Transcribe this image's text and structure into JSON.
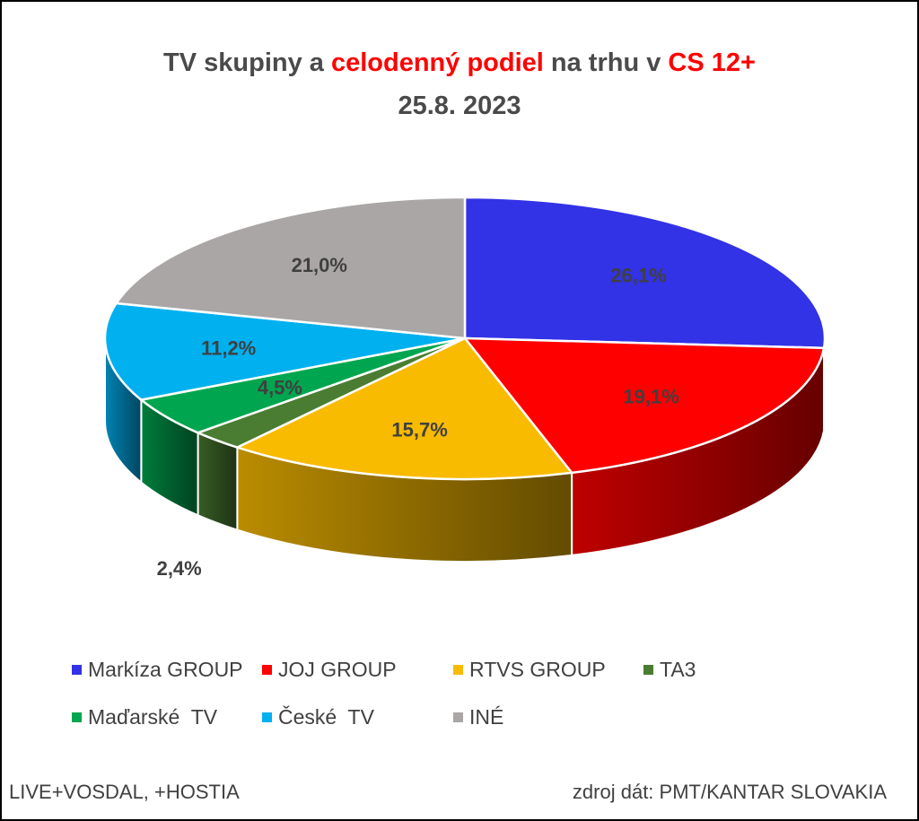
{
  "title": {
    "line1_part1": "TV skupiny a ",
    "line1_highlight1": "celodenný podiel",
    "line1_part2": " na trhu v ",
    "line1_highlight2": "CS 12+",
    "line2": "25.8. 2023"
  },
  "chart_data": {
    "type": "pie",
    "style": "3d",
    "slices": [
      {
        "name": "Markíza GROUP",
        "value": 26.1,
        "label": "26,1%",
        "color": "#3232e6"
      },
      {
        "name": "JOJ GROUP",
        "value": 19.1,
        "label": "19,1%",
        "color": "#ff0000"
      },
      {
        "name": "RTVS GROUP",
        "value": 15.7,
        "label": "15,7%",
        "color": "#f8bb00"
      },
      {
        "name": "TA3",
        "value": 2.4,
        "label": "2,4%",
        "color": "#4a7d31"
      },
      {
        "name": "Maďarské  TV",
        "value": 4.5,
        "label": "4,5%",
        "color": "#00a64f"
      },
      {
        "name": "České  TV",
        "value": 11.2,
        "label": "11,2%",
        "color": "#00b0ef"
      },
      {
        "name": "INÉ",
        "value": 21.0,
        "label": "21,0%",
        "color": "#aaa6a6"
      }
    ],
    "legend_position": "bottom"
  },
  "footer": {
    "left": "LIVE+VOSDAL, +HOSTIA",
    "right": "zdroj dát: PMT/KANTAR SLOVAKIA"
  }
}
